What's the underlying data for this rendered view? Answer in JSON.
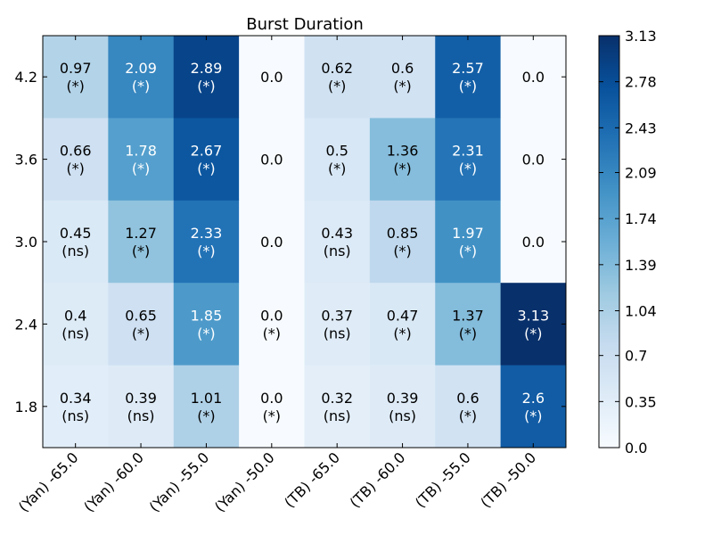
{
  "chart_data": {
    "type": "heatmap",
    "title": "Burst Duration",
    "xlabel": "",
    "ylabel": "",
    "x_categories": [
      "(Yan) -65.0",
      "(Yan) -60.0",
      "(Yan) -55.0",
      "(Yan) -50.0",
      "(TB) -65.0",
      "(TB) -60.0",
      "(TB) -55.0",
      "(TB) -50.0"
    ],
    "y_categories": [
      "4.2",
      "3.6",
      "3.0",
      "2.4",
      "1.8"
    ],
    "values": [
      [
        0.97,
        2.09,
        2.89,
        0.0,
        0.62,
        0.6,
        2.57,
        0.0
      ],
      [
        0.66,
        1.78,
        2.67,
        0.0,
        0.5,
        1.36,
        2.31,
        0.0
      ],
      [
        0.45,
        1.27,
        2.33,
        0.0,
        0.43,
        0.85,
        1.97,
        0.0
      ],
      [
        0.4,
        0.65,
        1.85,
        0.0,
        0.37,
        0.47,
        1.37,
        3.13
      ],
      [
        0.34,
        0.39,
        1.01,
        0.0,
        0.32,
        0.39,
        0.6,
        2.6
      ]
    ],
    "value_labels": [
      [
        "0.97",
        "2.09",
        "2.89",
        "0.0",
        "0.62",
        "0.6",
        "2.57",
        "0.0"
      ],
      [
        "0.66",
        "1.78",
        "2.67",
        "0.0",
        "0.5",
        "1.36",
        "2.31",
        "0.0"
      ],
      [
        "0.45",
        "1.27",
        "2.33",
        "0.0",
        "0.43",
        "0.85",
        "1.97",
        "0.0"
      ],
      [
        "0.4",
        "0.65",
        "1.85",
        "0.0",
        "0.37",
        "0.47",
        "1.37",
        "3.13"
      ],
      [
        "0.34",
        "0.39",
        "1.01",
        "0.0",
        "0.32",
        "0.39",
        "0.6",
        "2.6"
      ]
    ],
    "significance": [
      [
        "(*)",
        "(*)",
        "(*)",
        "",
        "(*)",
        "(*)",
        "(*)",
        ""
      ],
      [
        "(*)",
        "(*)",
        "(*)",
        "",
        "(*)",
        "(*)",
        "(*)",
        ""
      ],
      [
        "(ns)",
        "(*)",
        "(*)",
        "",
        "(ns)",
        "(*)",
        "(*)",
        ""
      ],
      [
        "(ns)",
        "(*)",
        "(*)",
        "(*)",
        "(ns)",
        "(*)",
        "(*)",
        "(*)"
      ],
      [
        "(ns)",
        "(ns)",
        "(*)",
        "(*)",
        "(ns)",
        "(ns)",
        "(*)",
        "(*)"
      ]
    ],
    "colorbar": {
      "min": 0.0,
      "max": 3.13,
      "ticks": [
        "0.0",
        "0.35",
        "0.7",
        "1.04",
        "1.39",
        "1.74",
        "2.09",
        "2.43",
        "2.78",
        "3.13"
      ],
      "colormap": "Blues"
    },
    "grid": false
  }
}
